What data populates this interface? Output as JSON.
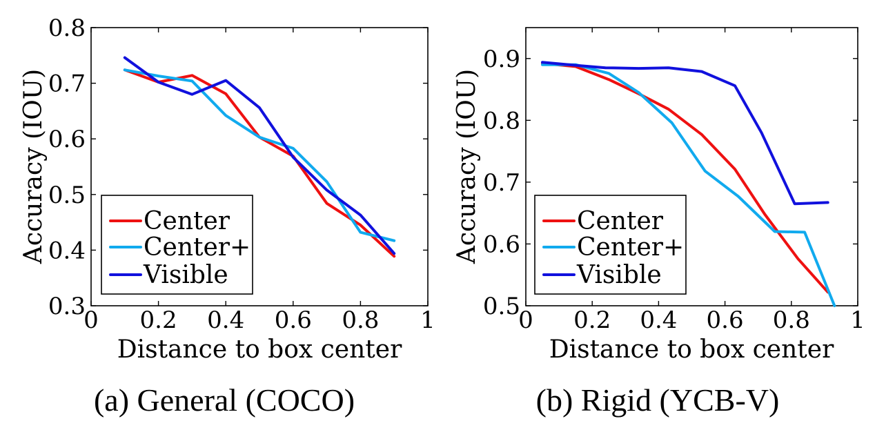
{
  "colors": {
    "Center": "#ee1111",
    "Center+": "#11aaee",
    "Visible": "#1111dd"
  },
  "chart_data": [
    {
      "type": "line",
      "caption": "(a) General (COCO)",
      "xlabel": "Distance to box center",
      "ylabel": "Accuracy (IOU)",
      "xlim": [
        0,
        1
      ],
      "ylim": [
        0.3,
        0.8
      ],
      "xticks": [
        "0",
        "0.2",
        "0.4",
        "0.6",
        "0.8",
        "1"
      ],
      "xtick_values": [
        0,
        0.2,
        0.4,
        0.6,
        0.8,
        1
      ],
      "yticks": [
        "0.3",
        "0.4",
        "0.5",
        "0.6",
        "0.7",
        "0.8"
      ],
      "ytick_values": [
        0.3,
        0.4,
        0.5,
        0.6,
        0.7,
        0.8
      ],
      "grid": false,
      "legend_position": "bottom-left",
      "series": [
        {
          "name": "Center",
          "x": [
            0.1,
            0.2,
            0.3,
            0.4,
            0.5,
            0.6,
            0.7,
            0.8,
            0.9
          ],
          "y": [
            0.724,
            0.702,
            0.714,
            0.681,
            0.603,
            0.569,
            0.484,
            0.445,
            0.389
          ]
        },
        {
          "name": "Center+",
          "x": [
            0.1,
            0.2,
            0.3,
            0.4,
            0.5,
            0.6,
            0.7,
            0.8,
            0.9
          ],
          "y": [
            0.724,
            0.713,
            0.704,
            0.642,
            0.603,
            0.583,
            0.523,
            0.432,
            0.417
          ]
        },
        {
          "name": "Visible",
          "x": [
            0.1,
            0.2,
            0.3,
            0.4,
            0.5,
            0.6,
            0.7,
            0.8,
            0.9
          ],
          "y": [
            0.746,
            0.702,
            0.68,
            0.705,
            0.656,
            0.567,
            0.508,
            0.463,
            0.394
          ]
        }
      ]
    },
    {
      "type": "line",
      "caption": "(b) Rigid (YCB-V)",
      "xlabel": "Distance to box center",
      "ylabel": "Accuracy (IOU)",
      "xlim": [
        0,
        1
      ],
      "ylim": [
        0.5,
        0.95
      ],
      "xticks": [
        "0",
        "0.2",
        "0.4",
        "0.6",
        "0.8",
        "1"
      ],
      "xtick_values": [
        0,
        0.2,
        0.4,
        0.6,
        0.8,
        1
      ],
      "yticks": [
        "0.5",
        "0.6",
        "0.7",
        "0.8",
        "0.9"
      ],
      "ytick_values": [
        0.5,
        0.6,
        0.7,
        0.8,
        0.9
      ],
      "grid": false,
      "legend_position": "bottom-left",
      "series": [
        {
          "name": "Center",
          "x": [
            0.05,
            0.15,
            0.25,
            0.34,
            0.43,
            0.53,
            0.63,
            0.72,
            0.82,
            0.91
          ],
          "y": [
            0.892,
            0.887,
            0.866,
            0.843,
            0.818,
            0.777,
            0.721,
            0.648,
            0.576,
            0.522
          ]
        },
        {
          "name": "Center+",
          "x": [
            0.05,
            0.15,
            0.25,
            0.34,
            0.44,
            0.54,
            0.64,
            0.75,
            0.84,
            0.93
          ],
          "y": [
            0.89,
            0.89,
            0.876,
            0.845,
            0.796,
            0.718,
            0.677,
            0.62,
            0.619,
            0.5
          ]
        },
        {
          "name": "Visible",
          "x": [
            0.05,
            0.15,
            0.24,
            0.34,
            0.43,
            0.53,
            0.63,
            0.71,
            0.81,
            0.91
          ],
          "y": [
            0.894,
            0.889,
            0.885,
            0.884,
            0.885,
            0.879,
            0.856,
            0.78,
            0.665,
            0.667
          ]
        }
      ]
    }
  ]
}
